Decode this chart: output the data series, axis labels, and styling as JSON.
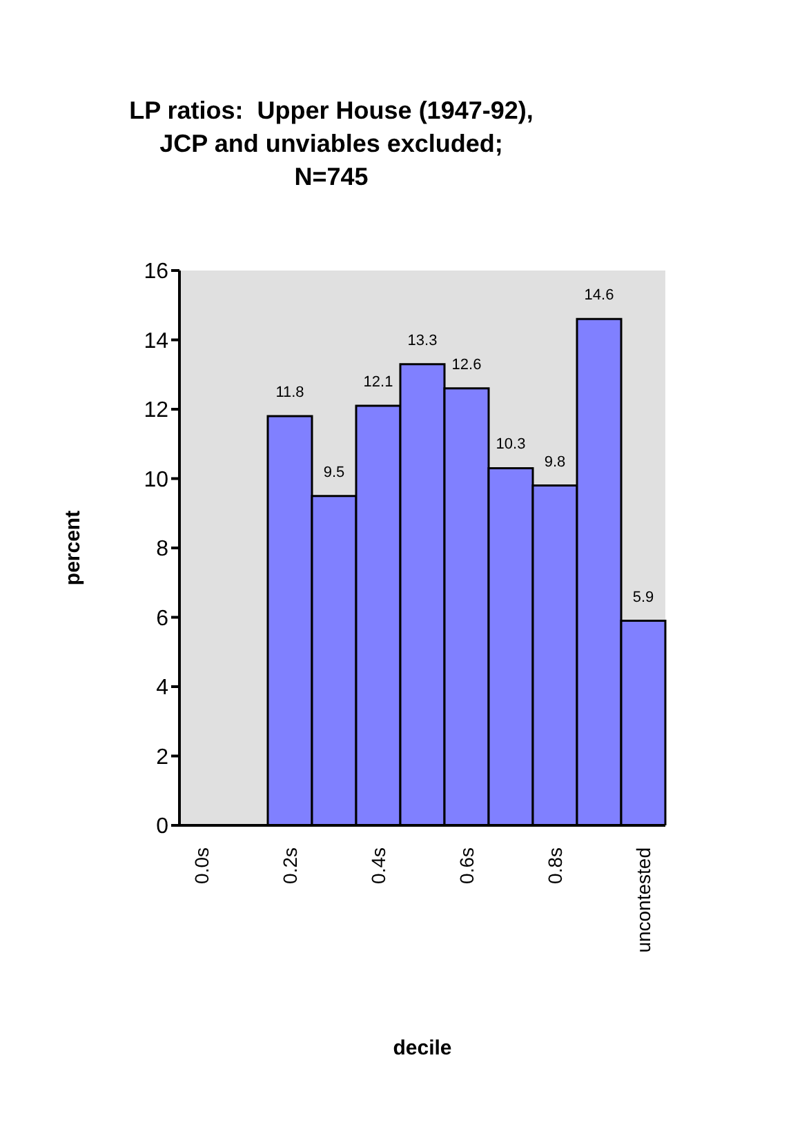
{
  "chart_data": {
    "type": "bar",
    "title": "LP ratios:  Upper House (1947-92),\nJCP and unviables excluded;\nN=745",
    "xlabel": "decile",
    "ylabel": "percent",
    "categories": [
      "0.0s",
      null,
      "0.2s",
      null,
      "0.4s",
      null,
      "0.6s",
      null,
      "0.8s",
      null,
      "uncontested"
    ],
    "values": [
      0,
      0,
      11.8,
      9.5,
      12.1,
      13.3,
      12.6,
      10.3,
      9.8,
      14.6,
      5.9
    ],
    "value_labels": [
      null,
      null,
      "11.8",
      "9.5",
      "12.1",
      "13.3",
      "12.6",
      "10.3",
      "9.8",
      "14.6",
      "5.9"
    ],
    "color": "#8080ff",
    "ylim": [
      0,
      16
    ],
    "yticks": [
      0,
      2,
      4,
      6,
      8,
      10,
      12,
      14,
      16
    ],
    "grid": false,
    "legend": false
  }
}
